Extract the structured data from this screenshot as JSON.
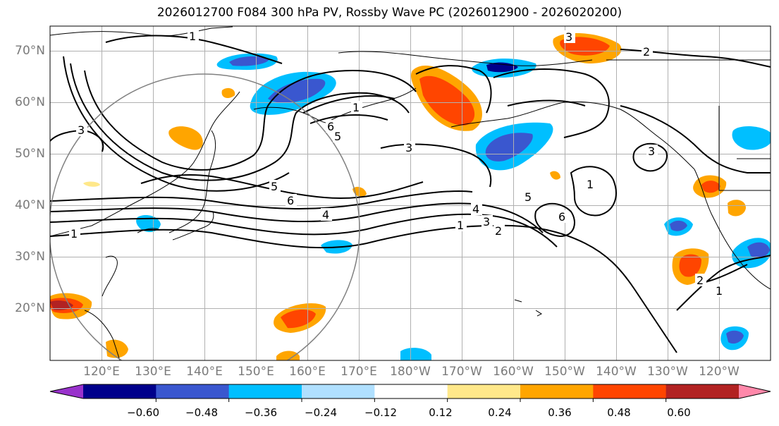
{
  "title": "2026012700 F084 300 hPa PV, Rossby Wave PC (2026012900 - 2026020200)",
  "map": {
    "lat_labels": [
      "70°N",
      "60°N",
      "50°N",
      "40°N",
      "30°N",
      "20°N"
    ],
    "lon_labels": [
      "120°E",
      "130°E",
      "140°E",
      "150°E",
      "160°E",
      "170°E",
      "180°W",
      "170°W",
      "160°W",
      "150°W",
      "140°W",
      "130°W",
      "120°W"
    ],
    "contour_labels": [
      "1",
      "2",
      "1",
      "6",
      "5",
      "3",
      "3",
      "3",
      "6",
      "5",
      "4",
      "5",
      "6",
      "1",
      "4",
      "3",
      "2",
      "1",
      "1",
      "1",
      "3",
      "2"
    ]
  },
  "colorbar": {
    "tick_labels": [
      "−0.60",
      "−0.48",
      "−0.36",
      "−0.24",
      "−0.12",
      "0.12",
      "0.24",
      "0.36",
      "0.48",
      "0.60"
    ],
    "colors": [
      "#9932cc",
      "#00008b",
      "#3a57cf",
      "#00bfff",
      "#b0e0ff",
      "#ffffff",
      "#ffe88a",
      "#ffa500",
      "#ff4500",
      "#b22222",
      "#ff88aa"
    ]
  }
}
